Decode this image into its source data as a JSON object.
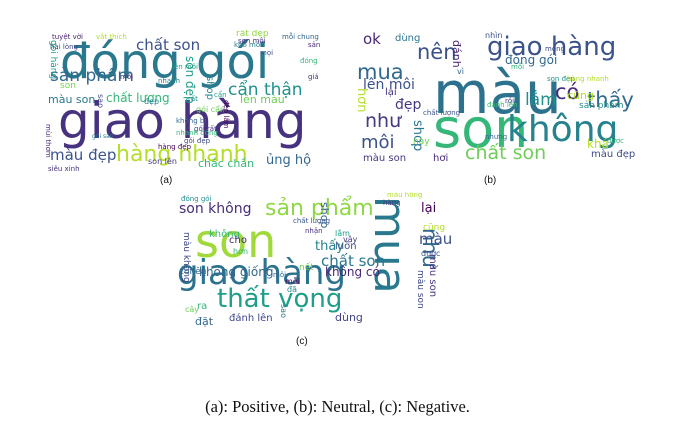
{
  "clouds": [
    {
      "label": "(a)",
      "words": [
        {
          "t": "đóng gói",
          "c": "#2a788e"
        },
        {
          "t": "giao hàng",
          "c": "#46327e"
        },
        {
          "t": "hàng nhanh",
          "c": "#b5de2b"
        },
        {
          "t": "chất son",
          "c": "#3b528b"
        },
        {
          "t": "sản phẩm",
          "c": "#31688e"
        },
        {
          "t": "cẩn thận",
          "c": "#21918c"
        },
        {
          "t": "màu đẹp",
          "c": "#3b528b"
        },
        {
          "t": "chất lượng",
          "c": "#35b779"
        },
        {
          "t": "màu son",
          "c": "#2a788e"
        },
        {
          "t": "son đẹp",
          "c": "#1f9e89"
        },
        {
          "t": "lên màu",
          "c": "#6ece58"
        },
        {
          "t": "rất đẹp",
          "c": "#90d743"
        },
        {
          "t": "chắc chắn",
          "c": "#35b779"
        },
        {
          "t": "ủng hộ",
          "c": "#31688e"
        },
        {
          "t": "son lên",
          "c": "#443983"
        },
        {
          "t": "tuyệt vời",
          "c": "#482475"
        },
        {
          "t": "gói hàng",
          "c": "#1f9e89"
        },
        {
          "t": "shop",
          "c": "#26828e"
        },
        {
          "t": "gói cẩn",
          "c": "#6ece58"
        },
        {
          "t": "hài lòng",
          "c": "#414487"
        },
        {
          "t": "vắt thích",
          "c": "#b5de2b"
        },
        {
          "t": "mỗi chung",
          "c": "#31688e"
        },
        {
          "t": "sản",
          "c": "#482878"
        },
        {
          "t": "nhanh",
          "c": "#26828e"
        },
        {
          "t": "sao",
          "c": "#3e4989"
        },
        {
          "t": "mọi",
          "c": "#3e4989"
        },
        {
          "t": "siêu xinh",
          "c": "#46327e"
        },
        {
          "t": "rất",
          "c": "#21918c"
        },
        {
          "t": "cẩn",
          "c": "#1f9e89"
        },
        {
          "t": "gói rất",
          "c": "#443983"
        },
        {
          "t": "đẹp lắm",
          "c": "#440154"
        },
        {
          "t": "mùi thơm",
          "c": "#482878"
        },
        {
          "t": "nhanh đóng",
          "c": "#35b779"
        },
        {
          "t": "không bị",
          "c": "#31688e"
        },
        {
          "t": "gói sản",
          "c": "#2a788e"
        },
        {
          "t": "lên môi",
          "c": "#1f9e89"
        },
        {
          "t": "son môi",
          "c": "#46327e"
        },
        {
          "t": "đóng",
          "c": "#35b779"
        },
        {
          "t": "gói đẹp",
          "c": "#3e4989"
        },
        {
          "t": "hàng đẹp",
          "c": "#440154"
        },
        {
          "t": "khô môi",
          "c": "#2a788e"
        },
        {
          "t": "đẹp",
          "c": "#26828e"
        },
        {
          "t": "giá",
          "c": "#46327e"
        },
        {
          "t": "son",
          "c": "#7ad151"
        },
        {
          "t": "môi",
          "c": "#482878"
        }
      ]
    },
    {
      "label": "(b)",
      "words": [
        {
          "t": "màu",
          "c": "#2c728e"
        },
        {
          "t": "son",
          "c": "#35b779"
        },
        {
          "t": "không",
          "c": "#26828e"
        },
        {
          "t": "giao hàng",
          "c": "#3b528b"
        },
        {
          "t": "chất son",
          "c": "#6ece58"
        },
        {
          "t": "mua",
          "c": "#31688e"
        },
        {
          "t": "nên",
          "c": "#3b528b"
        },
        {
          "t": "có",
          "c": "#472d7b"
        },
        {
          "t": "thấy",
          "c": "#31688e"
        },
        {
          "t": "lên môi",
          "c": "#3b528b"
        },
        {
          "t": "như",
          "c": "#443983"
        },
        {
          "t": "môi",
          "c": "#3b528b"
        },
        {
          "t": "lắm",
          "c": "#21918c"
        },
        {
          "t": "ok",
          "c": "#482878"
        },
        {
          "t": "đẹp",
          "c": "#443983"
        },
        {
          "t": "hơn",
          "c": "#b5de2b"
        },
        {
          "t": "shop",
          "c": "#2a788e"
        },
        {
          "t": "đóng gói",
          "c": "#31688e"
        },
        {
          "t": "dùng",
          "c": "#2a788e"
        },
        {
          "t": "cũng",
          "c": "#b5de2b"
        },
        {
          "t": "sản phẩm",
          "c": "#21918c"
        },
        {
          "t": "màu son",
          "c": "#443983"
        },
        {
          "t": "hơi",
          "c": "#482878"
        },
        {
          "t": "khá",
          "c": "#b5de2b"
        },
        {
          "t": "màu đẹp",
          "c": "#3e4989"
        },
        {
          "t": "lại",
          "c": "#46327e"
        },
        {
          "t": "đánh",
          "c": "#482475"
        },
        {
          "t": "nhìn",
          "c": "#3b528b"
        },
        {
          "t": "vì",
          "c": "#31688e"
        },
        {
          "t": "son đẹp",
          "c": "#21918c"
        },
        {
          "t": "chất lượng",
          "c": "#3b528b"
        },
        {
          "t": "đánh lên",
          "c": "#35b779"
        },
        {
          "t": "hàng nhanh",
          "c": "#b5de2b"
        },
        {
          "t": "này",
          "c": "#6ece58"
        },
        {
          "t": "được",
          "c": "#35b779"
        },
        {
          "t": "mỏng",
          "c": "#3e4989"
        },
        {
          "t": "mỗi",
          "c": "#35b779"
        },
        {
          "t": "nhưng",
          "c": "#31688e"
        },
        {
          "t": "rồi",
          "c": "#443983"
        }
      ]
    },
    {
      "label": "(c)",
      "words": [
        {
          "t": "son",
          "c": "#9fda3a"
        },
        {
          "t": "mua",
          "c": "#2a788e"
        },
        {
          "t": "giao hàng",
          "c": "#2c728e"
        },
        {
          "t": "thất vọng",
          "c": "#1f9e89"
        },
        {
          "t": "sản phẩm",
          "c": "#8fd744"
        },
        {
          "t": "son không",
          "c": "#472d7b"
        },
        {
          "t": "không",
          "c": "#35b779"
        },
        {
          "t": "như",
          "c": "#31688e"
        },
        {
          "t": "thấy",
          "c": "#26828e"
        },
        {
          "t": "chất son",
          "c": "#2a788e"
        },
        {
          "t": "màu",
          "c": "#3b528b"
        },
        {
          "t": "lại",
          "c": "#440154"
        },
        {
          "t": "luôn",
          "c": "#3b528b"
        },
        {
          "t": "cũng",
          "c": "#b5de2b"
        },
        {
          "t": "không giống",
          "c": "#31688e"
        },
        {
          "t": "không có",
          "c": "#482878"
        },
        {
          "t": "màu son",
          "c": "#46327e"
        },
        {
          "t": "đánh lên",
          "c": "#3e4989"
        },
        {
          "t": "đặt",
          "c": "#31688e"
        },
        {
          "t": "dùng",
          "c": "#414487"
        },
        {
          "t": "shop",
          "c": "#31688e"
        },
        {
          "t": "ra",
          "c": "#35b779"
        },
        {
          "t": "cây",
          "c": "#6ece58"
        },
        {
          "t": "mỗi",
          "c": "#440154"
        },
        {
          "t": "đã",
          "c": "#26828e"
        },
        {
          "t": "lắm",
          "c": "#1f9e89"
        },
        {
          "t": "vậy",
          "c": "#443983"
        },
        {
          "t": "được",
          "c": "#3b528b"
        },
        {
          "t": "màu không",
          "c": "#3e4989"
        },
        {
          "t": "cònên",
          "c": "#31688e"
        },
        {
          "t": "đóng gói",
          "c": "#21918c"
        },
        {
          "t": "chất lượng",
          "c": "#3b528b"
        },
        {
          "t": "cho",
          "c": "#482878"
        },
        {
          "t": "hơn",
          "c": "#35b779"
        },
        {
          "t": "nết",
          "c": "#6ece58"
        },
        {
          "t": "sao",
          "c": "#2c728e"
        },
        {
          "t": "màu hồng",
          "c": "#b5de2b"
        },
        {
          "t": "hàng",
          "c": "#443983"
        },
        {
          "t": "nhận",
          "c": "#46327e"
        },
        {
          "t": "màu son",
          "c": "#3e4989"
        },
        {
          "t": "môi",
          "c": "#31688e"
        }
      ]
    }
  ],
  "caption": "(a): Positive, (b): Neutral, (c): Negative."
}
